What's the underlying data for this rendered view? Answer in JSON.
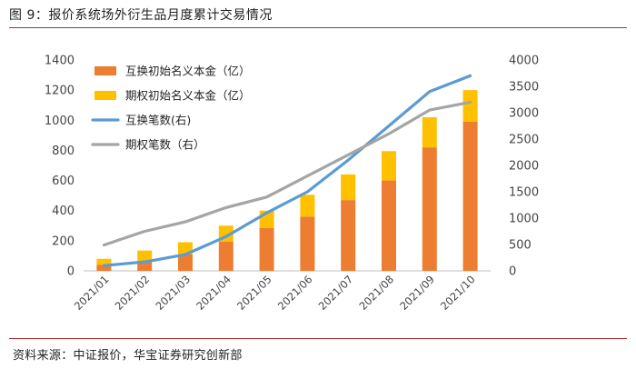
{
  "figure": {
    "title": "图 9：报价系统场外衍生品月度累计交易情况",
    "source": "资料来源：中证报价，华宝证券研究创新部"
  },
  "chart_data": {
    "type": "bar",
    "stacked": true,
    "categories": [
      "2021/01",
      "2021/02",
      "2021/03",
      "2021/04",
      "2021/05",
      "2021/06",
      "2021/07",
      "2021/08",
      "2021/09",
      "2021/10"
    ],
    "series": [
      {
        "name": "互换初始名义本金（亿）",
        "kind": "bar",
        "axis": "left",
        "color": "#ED7D31",
        "values": [
          40,
          65,
          110,
          195,
          285,
          360,
          470,
          600,
          820,
          990
        ]
      },
      {
        "name": "期权初始名义本金（亿）",
        "kind": "bar",
        "axis": "left",
        "color": "#FFC000",
        "values": [
          40,
          70,
          80,
          105,
          115,
          145,
          170,
          195,
          200,
          210
        ]
      },
      {
        "name": "互换笔数(右)",
        "kind": "line",
        "axis": "right",
        "color": "#5B9BD5",
        "values": [
          100,
          170,
          310,
          650,
          1100,
          1500,
          2100,
          2750,
          3400,
          3700
        ]
      },
      {
        "name": "期权笔数（右）",
        "kind": "line",
        "axis": "right",
        "color": "#A5A5A5",
        "values": [
          490,
          750,
          930,
          1200,
          1400,
          1800,
          2200,
          2600,
          3050,
          3200
        ]
      }
    ],
    "ylim_left": [
      0,
      1400
    ],
    "yticks_left": [
      "0",
      "200",
      "400",
      "600",
      "800",
      "1000",
      "1200",
      "1400"
    ],
    "ylim_right": [
      0,
      4000
    ],
    "yticks_right": [
      "0",
      "500",
      "1000",
      "1500",
      "2000",
      "2500",
      "3000",
      "3500",
      "4000"
    ],
    "xlabel": "",
    "ylabel": "",
    "legend": "top-left inside",
    "grid": false
  }
}
